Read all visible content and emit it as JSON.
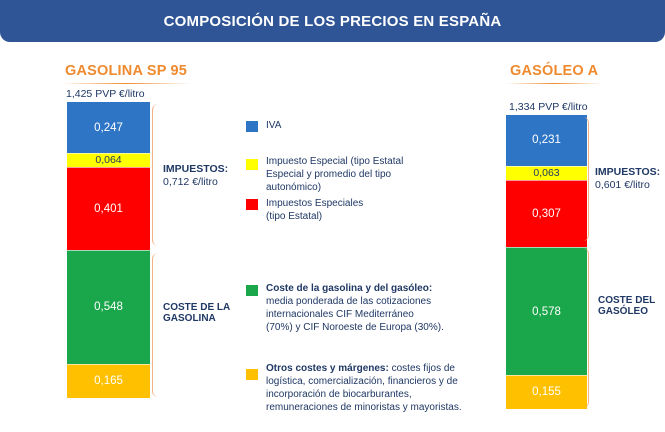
{
  "header": {
    "title": "COMPOSICIÓN DE LOS PRECIOS EN ESPAÑA"
  },
  "colors": {
    "iva": "#2f75c6",
    "impuesto_especial_estatal_autonomico": "#ffff00",
    "impuestos_especiales_estatal": "#ff0000",
    "coste_producto": "#1aa64a",
    "otros_costes": "#ffc000",
    "header_bg": "#2f5597",
    "column_title": "#ef8a2e"
  },
  "gasolina": {
    "title": "GASOLINA SP 95",
    "pvp": "1,425 PVP €/litro",
    "impuestos_label": "IMPUESTOS:",
    "impuestos_value": "0,712 €/litro",
    "coste_label_line1": "COSTE DE LA",
    "coste_label_line2": "GASOLINA"
  },
  "gasoleo": {
    "title": "GASÓLEO A",
    "pvp": "1,334 PVP €/litro",
    "impuestos_label": "IMPUESTOS:",
    "impuestos_value": "0,601 €/litro",
    "coste_label_line1": "COSTE DEL",
    "coste_label_line2": "GASÓLEO"
  },
  "legend": {
    "iva": {
      "text": "IVA",
      "color": "#2f75c6"
    },
    "especial": {
      "line1": "Impuesto Especial (tipo Estatal",
      "line2": "Especial y promedio del tipo",
      "line3": "autonómico)",
      "color": "#ffff00"
    },
    "especiales": {
      "line1": "Impuestos Especiales",
      "line2": "(tipo Estatal)",
      "color": "#ff0000"
    },
    "coste": {
      "bold": "Coste de la gasolina y del gasóleo:",
      "line2": "media ponderada de las cotizaciones",
      "line3": "internacionales CIF Mediterráneo",
      "line4": "(70%) y CIF Noroeste de Europa (30%).",
      "color": "#1aa64a"
    },
    "otros": {
      "bold": "Otros costes y márgenes:",
      "rest1": " costes fijos de",
      "line2": "logística, comercialización, financieros y de",
      "line3": "incorporación de biocarburantes,",
      "line4": "remuneraciones de minoristas y mayoristas.",
      "color": "#ffc000"
    }
  },
  "chart_data": {
    "type": "bar",
    "stacked": true,
    "title": "COMPOSICIÓN DE LOS PRECIOS EN ESPAÑA",
    "unit": "€/litro",
    "categories": [
      "GASOLINA SP 95",
      "GASÓLEO A"
    ],
    "totals": [
      1.425,
      1.334
    ],
    "totals_label": [
      "1,425 PVP €/litro",
      "1,334 PVP €/litro"
    ],
    "series": [
      {
        "name": "IVA",
        "values": [
          0.247,
          0.231
        ],
        "labels": [
          "0,247",
          "0,231"
        ],
        "color": "#2f75c6"
      },
      {
        "name": "Impuesto Especial (tipo Estatal Especial y promedio del tipo autonómico)",
        "values": [
          0.064,
          0.063
        ],
        "labels": [
          "0,064",
          "0,063"
        ],
        "color": "#ffff00"
      },
      {
        "name": "Impuestos Especiales (tipo Estatal)",
        "values": [
          0.401,
          0.307
        ],
        "labels": [
          "0,401",
          "0,307"
        ],
        "color": "#ff0000"
      },
      {
        "name": "Coste de la gasolina y del gasóleo",
        "values": [
          0.548,
          0.578
        ],
        "labels": [
          "0,548",
          "0,578"
        ],
        "color": "#1aa64a"
      },
      {
        "name": "Otros costes y márgenes",
        "values": [
          0.165,
          0.155
        ],
        "labels": [
          "0,165",
          "0,155"
        ],
        "color": "#ffc000"
      }
    ],
    "impuestos_totals": [
      0.712,
      0.601
    ]
  }
}
